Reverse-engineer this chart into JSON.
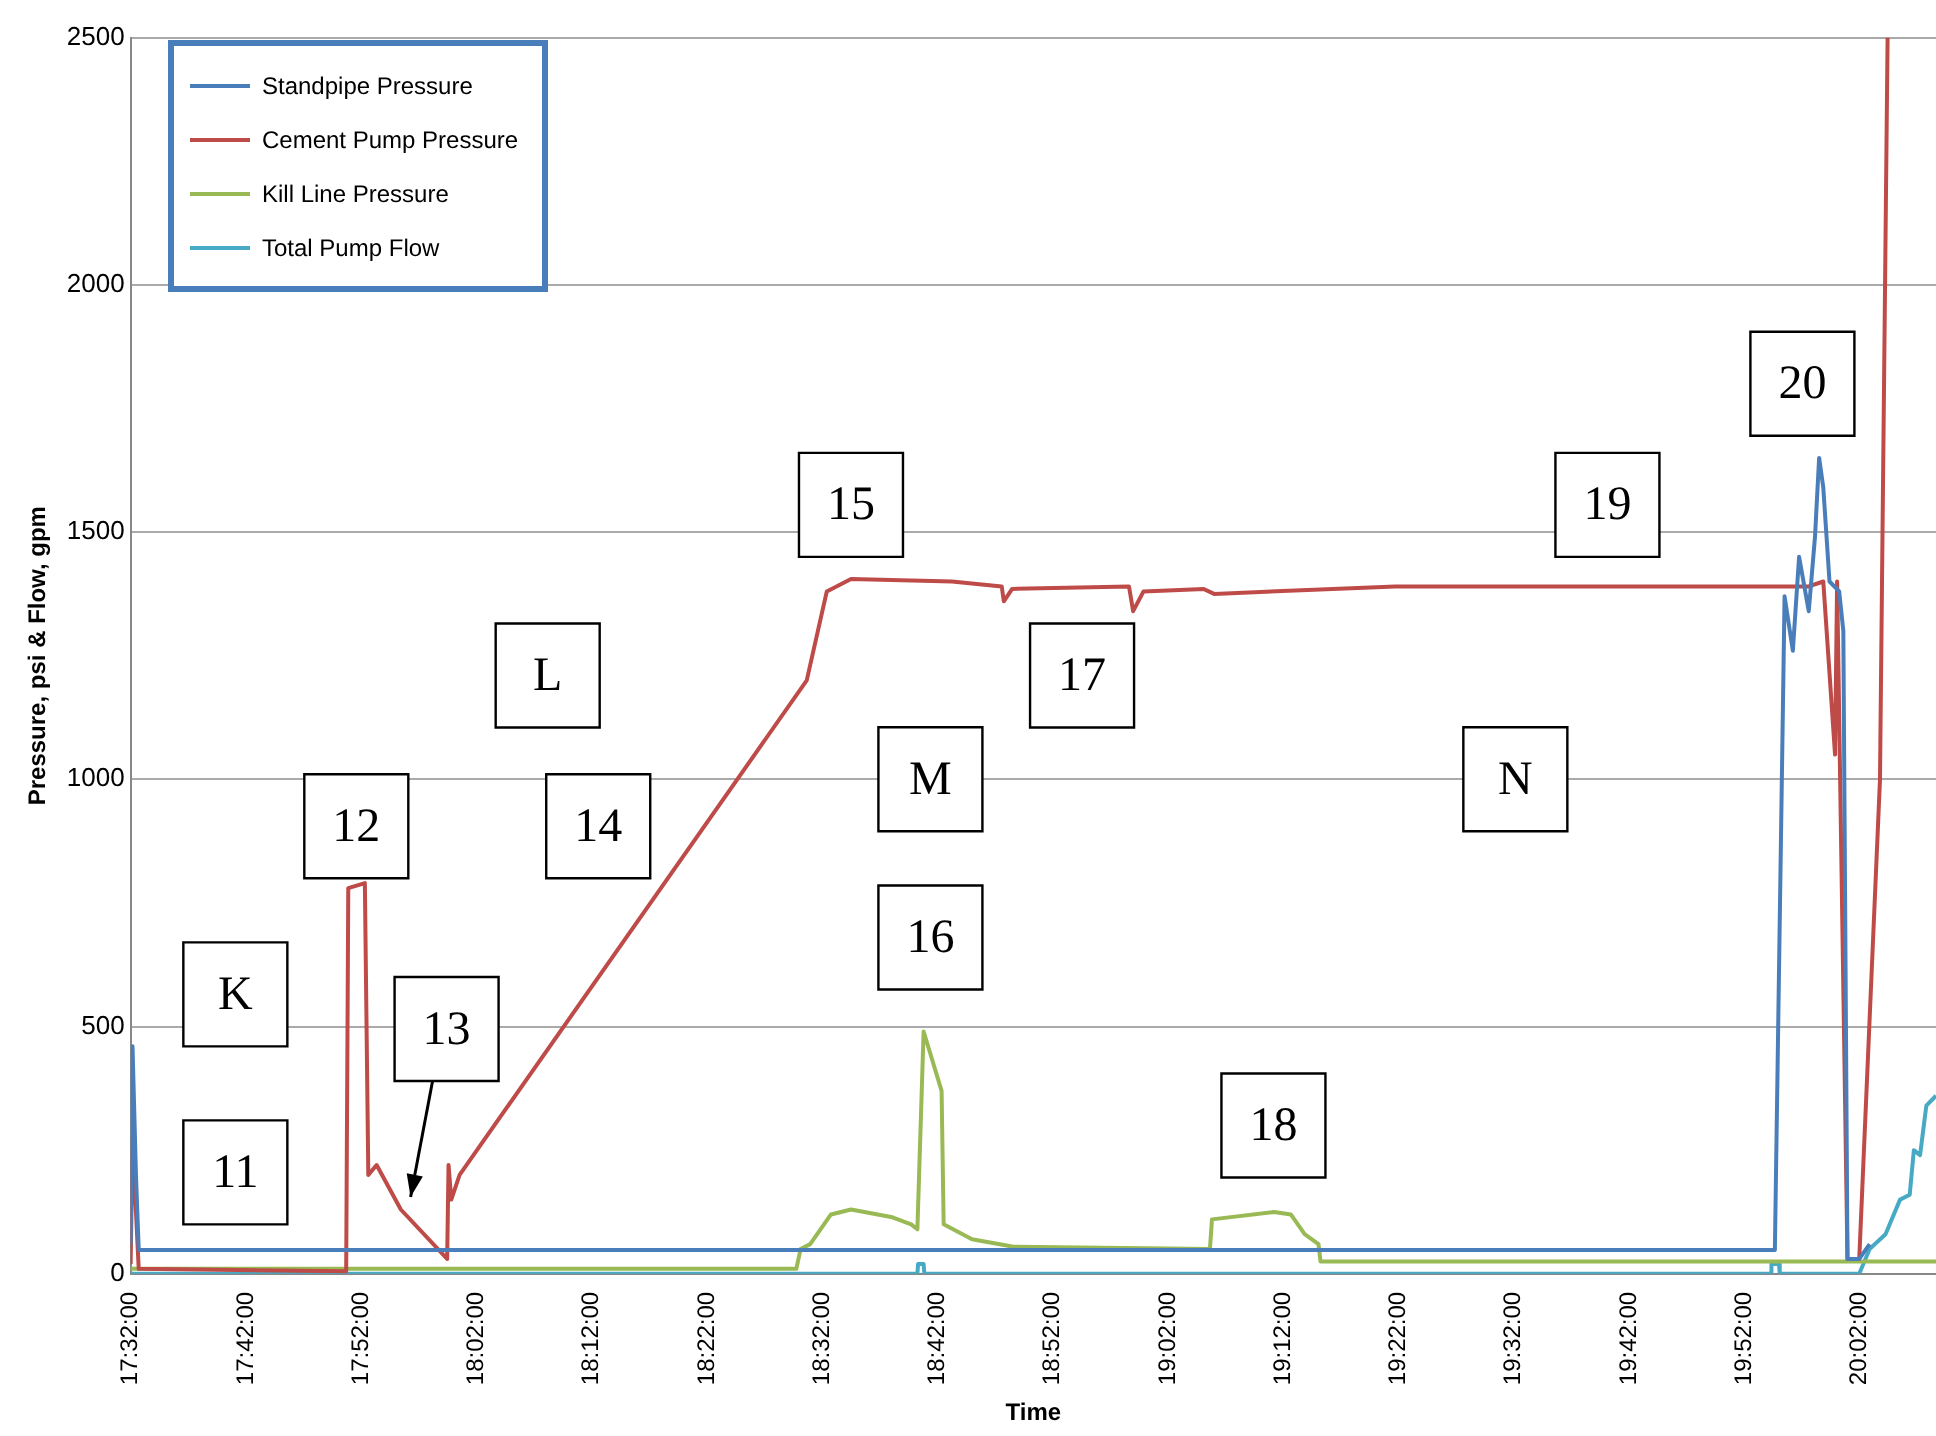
{
  "chart_data": {
    "type": "line",
    "xlabel": "Time",
    "ylabel": "Pressure, psi & Flow, gpm",
    "xlim": [
      17.5333,
      20.144
    ],
    "ylim": [
      0,
      2500
    ],
    "yticks": [
      0,
      500,
      1000,
      1500,
      2000,
      2500
    ],
    "xticks": [
      {
        "value": 17.5333,
        "label": "17:32:00"
      },
      {
        "value": 17.7,
        "label": "17:42:00"
      },
      {
        "value": 17.8667,
        "label": "17:52:00"
      },
      {
        "value": 18.0333,
        "label": "18:02:00"
      },
      {
        "value": 18.2,
        "label": "18:12:00"
      },
      {
        "value": 18.3667,
        "label": "18:22:00"
      },
      {
        "value": 18.5333,
        "label": "18:32:00"
      },
      {
        "value": 18.7,
        "label": "18:42:00"
      },
      {
        "value": 18.8667,
        "label": "18:52:00"
      },
      {
        "value": 19.0333,
        "label": "19:02:00"
      },
      {
        "value": 19.2,
        "label": "19:12:00"
      },
      {
        "value": 19.3667,
        "label": "19:22:00"
      },
      {
        "value": 19.5333,
        "label": "19:32:00"
      },
      {
        "value": 19.7,
        "label": "19:42:00"
      },
      {
        "value": 19.8667,
        "label": "19:52:00"
      },
      {
        "value": 20.0333,
        "label": "20:02:00"
      }
    ],
    "grid": "y",
    "legend": "top left",
    "marker": "none",
    "line_style": "solid",
    "series": [
      {
        "name": "Standpipe Pressure",
        "color": "#4a7ebb",
        "x": [
          17.5333,
          17.536,
          17.541,
          17.545,
          19.911,
          19.925,
          19.937,
          19.946,
          19.96,
          19.969,
          19.975,
          19.981,
          19.99,
          20.004,
          20.01,
          20.016,
          20.033,
          20.048
        ],
        "values": [
          60,
          460,
          200,
          48,
          48,
          1370,
          1260,
          1450,
          1340,
          1490,
          1650,
          1590,
          1400,
          1380,
          1300,
          30,
          30,
          60
        ]
      },
      {
        "name": "Cement Pump Pressure",
        "color": "#be4b48",
        "x": [
          17.5333,
          17.536,
          17.545,
          17.845,
          17.848,
          17.872,
          17.877,
          17.889,
          17.924,
          17.991,
          17.993,
          17.997,
          18.009,
          18.511,
          18.54,
          18.575,
          18.721,
          18.793,
          18.796,
          18.808,
          18.977,
          18.983,
          18.998,
          19.085,
          19.1,
          19.362,
          19.96,
          19.981,
          19.998,
          20.001,
          20.016,
          20.033,
          20.063,
          20.074
        ],
        "values": [
          20,
          270,
          10,
          5,
          780,
          790,
          200,
          220,
          130,
          30,
          220,
          150,
          200,
          1200,
          1380,
          1405,
          1400,
          1390,
          1360,
          1385,
          1390,
          1340,
          1380,
          1385,
          1375,
          1390,
          1390,
          1400,
          1050,
          1400,
          30,
          30,
          1000,
          2500
        ]
      },
      {
        "name": "Kill Line Pressure",
        "color": "#98b954",
        "x": [
          17.5333,
          18.496,
          18.502,
          18.516,
          18.546,
          18.575,
          18.633,
          18.662,
          18.671,
          18.68,
          18.706,
          18.709,
          18.75,
          18.808,
          19.094,
          19.097,
          19.187,
          19.211,
          19.231,
          19.251,
          19.254,
          20.144
        ],
        "values": [
          10,
          10,
          50,
          60,
          120,
          130,
          115,
          100,
          90,
          490,
          370,
          100,
          70,
          55,
          50,
          110,
          125,
          120,
          80,
          60,
          25,
          25
        ]
      },
      {
        "name": "Total Pump Flow",
        "color": "#46aac5",
        "x": [
          17.5333,
          18.671,
          18.672,
          18.68,
          18.681,
          19.905,
          19.906,
          19.917,
          19.918,
          20.033,
          20.048,
          20.071,
          20.092,
          20.106,
          20.112,
          20.121,
          20.13,
          20.144
        ],
        "values": [
          0,
          0,
          20,
          20,
          0,
          0,
          20,
          20,
          0,
          0,
          50,
          80,
          150,
          160,
          250,
          240,
          340,
          360
        ]
      }
    ],
    "annotations": [
      "K",
      "11",
      "12",
      "13",
      "L",
      "14",
      "15",
      "M",
      "16",
      "17",
      "18",
      "19",
      "N",
      "20"
    ]
  }
}
